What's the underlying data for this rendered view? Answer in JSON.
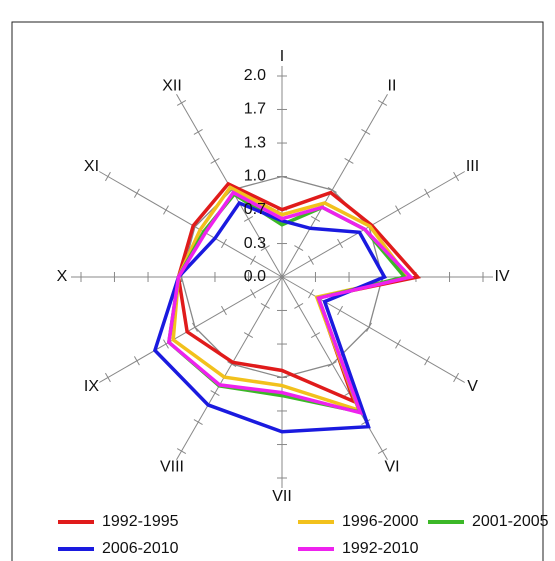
{
  "chart_data": {
    "type": "radar",
    "categories": [
      "I",
      "II",
      "III",
      "IV",
      "V",
      "VI",
      "VII",
      "VIII",
      "IX",
      "X",
      "XI",
      "XII"
    ],
    "ylim": [
      0,
      2
    ],
    "yticks": [
      {
        "value": 0,
        "label": "0.0"
      },
      {
        "value": 0.333,
        "label": "0.3"
      },
      {
        "value": 0.667,
        "label": "0.7"
      },
      {
        "value": 1,
        "label": "1.0"
      },
      {
        "value": 1.333,
        "label": "1.3"
      },
      {
        "value": 1.667,
        "label": "1.7"
      },
      {
        "value": 2,
        "label": "2.0"
      }
    ],
    "legend": "bottom",
    "series": [
      {
        "name": "1992-1995",
        "color": "#e01b1b",
        "values": [
          0.67,
          0.97,
          1.03,
          1.35,
          0.41,
          1.43,
          0.93,
          0.98,
          1.09,
          1.03,
          1.02,
          1.07
        ]
      },
      {
        "name": "1996-2000",
        "color": "#f2c11c",
        "values": [
          0.62,
          0.85,
          1.01,
          1.25,
          0.4,
          1.53,
          1.08,
          1.15,
          1.25,
          1.03,
          0.94,
          1.03
        ]
      },
      {
        "name": "2001-2005",
        "color": "#3cb828",
        "values": [
          0.52,
          0.8,
          0.95,
          1.22,
          0.42,
          1.55,
          1.18,
          1.25,
          1.3,
          1.03,
          0.9,
          0.95
        ]
      },
      {
        "name": "2006-2010",
        "color": "#1a1adf",
        "values": [
          0.56,
          0.56,
          0.89,
          1.02,
          0.49,
          1.72,
          1.54,
          1.47,
          1.46,
          1.03,
          0.77,
          0.85
        ]
      },
      {
        "name": "1992-2010",
        "color": "#ee22ee",
        "values": [
          0.58,
          0.8,
          0.95,
          1.28,
          0.42,
          1.56,
          1.15,
          1.24,
          1.3,
          1.03,
          0.88,
          0.97
        ]
      }
    ]
  }
}
